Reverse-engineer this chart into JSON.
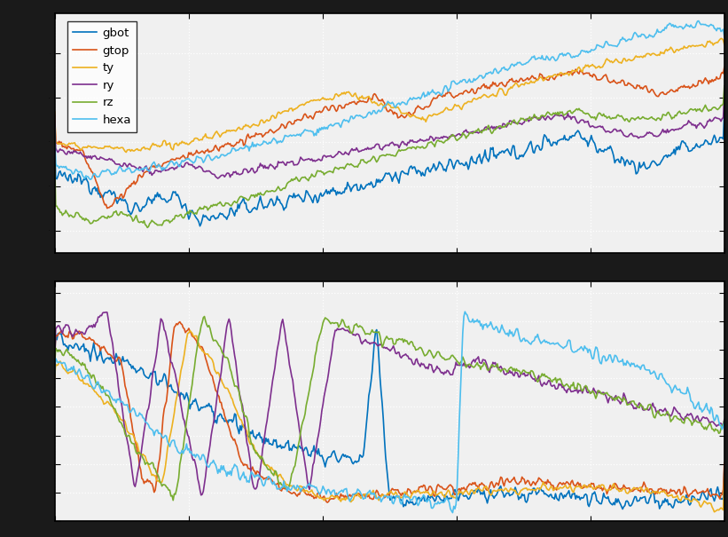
{
  "legend_labels": [
    "gbot",
    "gtop",
    "ty",
    "ry",
    "rz",
    "hexa"
  ],
  "colors": [
    "#0072BD",
    "#D95319",
    "#EDB120",
    "#7E2F8E",
    "#77AC30",
    "#4DBEEE"
  ],
  "linewidth": 1.2,
  "fig_background": "#1a1a1a",
  "subplot_background": "#f0f0f0",
  "grid_color": "#ffffff",
  "spine_color": "#000000"
}
